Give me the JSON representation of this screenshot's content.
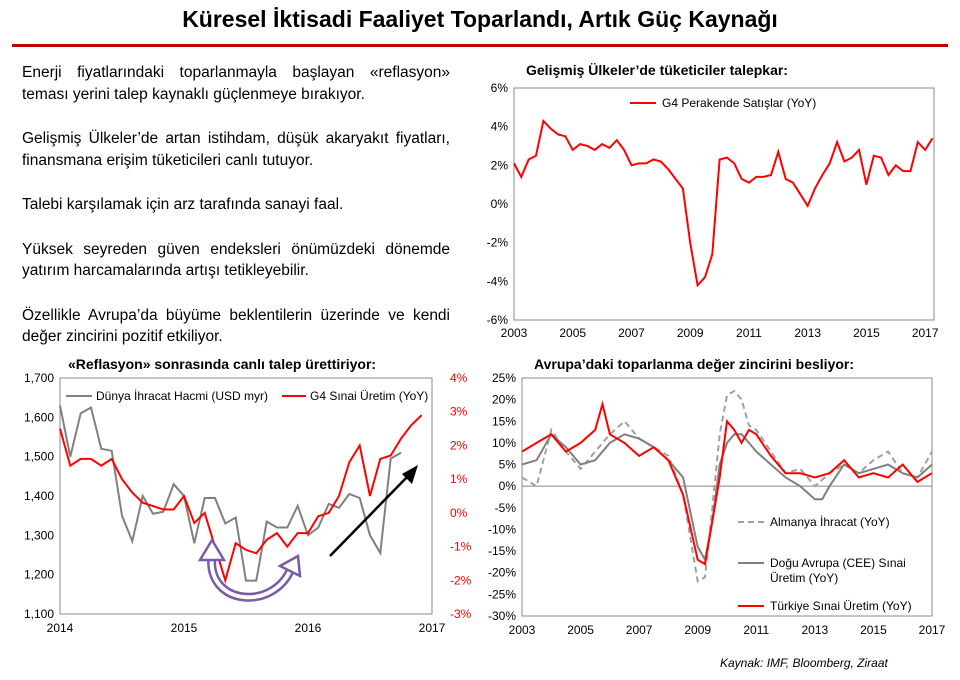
{
  "page": {
    "title": "Küresel İktisadi Faaliyet Toparlandı, Artık Güç Kaynağı",
    "source": "Kaynak: IMF, Bloomberg, Ziraat"
  },
  "bullets": [
    "Enerji fiyatlarındaki toparlanmayla başlayan «reflasyon» teması yerini talep kaynaklı güçlenmeye bırakıyor.",
    "Gelişmiş Ülkeler’de artan istihdam, düşük akaryakıt fiyatları, finansmana erişim tüketicileri canlı tutuyor.",
    "Talebi karşılamak için arz tarafında sanayi faal.",
    "Yüksek seyreden güven endeksleri önümüzdeki dönemde yatırım harcamalarında artışı tetikleyebilir.",
    "Özellikle Avrupa’da büyüme beklentilerin üzerinde ve kendi değer zincirini pozitif etkiliyor."
  ],
  "colors": {
    "red": "#ff0000",
    "gray": "#808080",
    "title_rule": "#c00000",
    "arrow_purple": "#7a5ba6"
  },
  "chart_data": [
    {
      "id": "retail",
      "type": "line",
      "title": "Gelişmiş Ülkeler’de tüketiciler talepkar:",
      "legend_position": "top-left",
      "grid": false,
      "xlim": [
        2003,
        2017.3
      ],
      "ylim": [
        -6,
        6
      ],
      "x_ticks": [
        "2003",
        "2005",
        "2007",
        "2009",
        "2011",
        "2013",
        "2015",
        "2017"
      ],
      "y_ticks": [
        "6%",
        "4%",
        "2%",
        "0%",
        "-2%",
        "-4%",
        "-6%"
      ],
      "series": [
        {
          "name": "G4 Perakende Satışlar (YoY)",
          "color": "#ff0000",
          "x": [
            2003.0,
            2003.25,
            2003.5,
            2003.75,
            2004.0,
            2004.25,
            2004.5,
            2004.75,
            2005.0,
            2005.25,
            2005.5,
            2005.75,
            2006.0,
            2006.25,
            2006.5,
            2006.75,
            2007.0,
            2007.25,
            2007.5,
            2007.75,
            2008.0,
            2008.25,
            2008.5,
            2008.75,
            2009.0,
            2009.25,
            2009.5,
            2009.75,
            2010.0,
            2010.25,
            2010.5,
            2010.75,
            2011.0,
            2011.25,
            2011.5,
            2011.75,
            2012.0,
            2012.25,
            2012.5,
            2012.75,
            2013.0,
            2013.25,
            2013.5,
            2013.75,
            2014.0,
            2014.25,
            2014.5,
            2014.75,
            2015.0,
            2015.25,
            2015.5,
            2015.75,
            2016.0,
            2016.25,
            2016.5,
            2016.75,
            2017.0,
            2017.25
          ],
          "y": [
            2.1,
            1.4,
            2.3,
            2.5,
            4.3,
            3.9,
            3.6,
            3.5,
            2.8,
            3.1,
            3.0,
            2.8,
            3.1,
            2.9,
            3.3,
            2.8,
            2.0,
            2.1,
            2.1,
            2.3,
            2.2,
            1.8,
            1.3,
            0.8,
            -2.0,
            -4.2,
            -3.8,
            -2.6,
            2.3,
            2.4,
            2.1,
            1.3,
            1.1,
            1.4,
            1.4,
            1.5,
            2.7,
            1.3,
            1.1,
            0.5,
            -0.1,
            0.8,
            1.5,
            2.1,
            3.2,
            2.2,
            2.4,
            2.8,
            1.0,
            2.5,
            2.4,
            1.5,
            2.0,
            1.7,
            1.7,
            3.2,
            2.8,
            3.4
          ]
        }
      ]
    },
    {
      "id": "trade",
      "type": "line",
      "title": "«Reflasyon» sonrasında canlı talep ürettiriyor:",
      "legend_position": "top",
      "grid": false,
      "xlim": [
        2014,
        2017
      ],
      "ylim_left": [
        1100,
        1700
      ],
      "ylim_right": [
        -3,
        4
      ],
      "x_ticks": [
        "2014",
        "2015",
        "2016",
        "2017"
      ],
      "y_ticks_left": [
        "1,700",
        "1,600",
        "1,500",
        "1,400",
        "1,300",
        "1,200",
        "1,100"
      ],
      "y_ticks_right": [
        "4%",
        "3%",
        "2%",
        "1%",
        "0%",
        "-1%",
        "-2%",
        "-3%"
      ],
      "series": [
        {
          "name": "Dünya İhracat Hacmi (USD myr)",
          "axis": "left",
          "color": "#808080",
          "x": [
            2014.0,
            2014.083,
            2014.167,
            2014.25,
            2014.333,
            2014.417,
            2014.5,
            2014.583,
            2014.667,
            2014.75,
            2014.833,
            2014.917,
            2015.0,
            2015.083,
            2015.167,
            2015.25,
            2015.333,
            2015.417,
            2015.5,
            2015.583,
            2015.667,
            2015.75,
            2015.833,
            2015.917,
            2016.0,
            2016.083,
            2016.167,
            2016.25,
            2016.333,
            2016.417,
            2016.5,
            2016.583,
            2016.667,
            2016.75
          ],
          "y": [
            1630,
            1500,
            1610,
            1625,
            1520,
            1515,
            1350,
            1285,
            1400,
            1355,
            1360,
            1430,
            1400,
            1280,
            1395,
            1395,
            1330,
            1345,
            1185,
            1185,
            1335,
            1320,
            1320,
            1375,
            1300,
            1320,
            1380,
            1370,
            1405,
            1395,
            1300,
            1255,
            1495,
            1510
          ]
        },
        {
          "name": "G4 Sınai Üretim (YoY)",
          "axis": "right",
          "color": "#ff0000",
          "x": [
            2014.0,
            2014.083,
            2014.167,
            2014.25,
            2014.333,
            2014.417,
            2014.5,
            2014.583,
            2014.667,
            2014.75,
            2014.833,
            2014.917,
            2015.0,
            2015.083,
            2015.167,
            2015.25,
            2015.333,
            2015.417,
            2015.5,
            2015.583,
            2015.667,
            2015.75,
            2015.833,
            2015.917,
            2016.0,
            2016.083,
            2016.167,
            2016.25,
            2016.333,
            2016.417,
            2016.5,
            2016.583,
            2016.667,
            2016.75,
            2016.833,
            2016.917
          ],
          "y": [
            2.5,
            1.4,
            1.6,
            1.6,
            1.4,
            1.6,
            1.0,
            0.6,
            0.3,
            0.2,
            0.1,
            0.1,
            0.5,
            -0.3,
            0.0,
            -1.0,
            -2.0,
            -0.9,
            -1.1,
            -1.2,
            -0.8,
            -0.6,
            -1.0,
            -0.6,
            -0.6,
            -0.1,
            0.0,
            0.5,
            1.5,
            2.0,
            0.5,
            1.6,
            1.7,
            2.2,
            2.6,
            2.9
          ]
        }
      ],
      "annotations": [
        "purple-u-turn-arrow",
        "black-up-trend-arrow"
      ]
    },
    {
      "id": "europe",
      "type": "line",
      "title": "Avrupa’daki toparlanma değer zincirini besliyor:",
      "legend_position": "bottom-right",
      "grid": false,
      "xlim": [
        2003,
        2017
      ],
      "ylim": [
        -30,
        25
      ],
      "x_ticks": [
        "2003",
        "2005",
        "2007",
        "2009",
        "2011",
        "2013",
        "2015",
        "2017"
      ],
      "y_ticks": [
        "25%",
        "20%",
        "15%",
        "10%",
        "5%",
        "0%",
        "-5%",
        "-10%",
        "-15%",
        "-20%",
        "-25%",
        "-30%"
      ],
      "series": [
        {
          "name": "Almanya İhracat (YoY)",
          "color": "#a0a0a0",
          "dash": true,
          "x": [
            2003.0,
            2003.5,
            2004.0,
            2004.5,
            2005.0,
            2005.5,
            2006.0,
            2006.5,
            2007.0,
            2007.5,
            2008.0,
            2008.5,
            2009.0,
            2009.25,
            2009.5,
            2009.75,
            2010.0,
            2010.25,
            2010.5,
            2010.75,
            2011.0,
            2011.5,
            2012.0,
            2012.5,
            2013.0,
            2013.5,
            2014.0,
            2014.5,
            2015.0,
            2015.5,
            2016.0,
            2016.5,
            2017.0
          ],
          "y": [
            2,
            0,
            13,
            8,
            4,
            8,
            12,
            15,
            11,
            9,
            7,
            -2,
            -22,
            -21,
            -5,
            12,
            21,
            22,
            20,
            14,
            13,
            8,
            3,
            4,
            0,
            3,
            5,
            3,
            6,
            8,
            3,
            2,
            8
          ]
        },
        {
          "name": "Doğu Avrupa (CEE) Sınai Üretim (YoY)",
          "color": "#808080",
          "x": [
            2003.0,
            2003.5,
            2004.0,
            2004.5,
            2005.0,
            2005.5,
            2006.0,
            2006.5,
            2007.0,
            2007.5,
            2008.0,
            2008.5,
            2009.0,
            2009.25,
            2009.5,
            2009.75,
            2010.0,
            2010.25,
            2010.5,
            2010.75,
            2011.0,
            2011.5,
            2012.0,
            2012.5,
            2013.0,
            2013.25,
            2013.5,
            2014.0,
            2014.5,
            2015.0,
            2015.5,
            2016.0,
            2016.5,
            2017.0
          ],
          "y": [
            5,
            6,
            12,
            9,
            5,
            6,
            10,
            12,
            11,
            9,
            6,
            2,
            -14,
            -17,
            -8,
            5,
            10,
            12,
            12,
            10,
            8,
            5,
            2,
            0,
            -3,
            -3,
            0,
            5,
            3,
            4,
            5,
            3,
            2,
            5
          ]
        },
        {
          "name": "Türkiye Sınai Üretim (YoY)",
          "color": "#ff0000",
          "x": [
            2003.0,
            2003.5,
            2004.0,
            2004.5,
            2005.0,
            2005.5,
            2005.75,
            2006.0,
            2006.5,
            2007.0,
            2007.5,
            2008.0,
            2008.5,
            2009.0,
            2009.25,
            2009.5,
            2009.75,
            2010.0,
            2010.25,
            2010.5,
            2010.75,
            2011.0,
            2011.5,
            2012.0,
            2012.5,
            2013.0,
            2013.5,
            2014.0,
            2014.5,
            2015.0,
            2015.5,
            2016.0,
            2016.5,
            2017.0
          ],
          "y": [
            8,
            10,
            12,
            8,
            10,
            13,
            19,
            12,
            10,
            7,
            9,
            6,
            -2,
            -17,
            -18,
            -8,
            2,
            15,
            13,
            10,
            13,
            12,
            7,
            3,
            3,
            2,
            3,
            6,
            2,
            3,
            2,
            5,
            1,
            3
          ]
        }
      ]
    }
  ]
}
